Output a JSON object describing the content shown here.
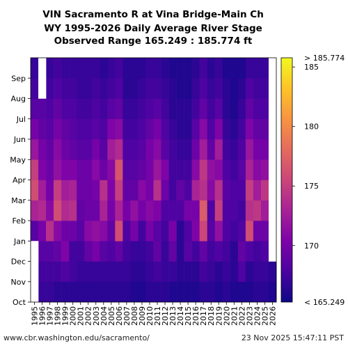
{
  "title_lines": [
    "VIN Sacramento R at Vina Bridge-Main Ch",
    "WY 1995-2026 Daily Average River Stage",
    "Observed Range 165.249 : 185.774 ft"
  ],
  "footer": {
    "source": "www.cbr.washington.edu/sacramento/",
    "timestamp": "23 Nov 2025 15:47:11 PST"
  },
  "chart_data": {
    "type": "heatmap",
    "x_categories": [
      "1995",
      "1996",
      "1997",
      "1998",
      "1999",
      "2000",
      "2001",
      "2002",
      "2003",
      "2004",
      "2005",
      "2006",
      "2007",
      "2008",
      "2009",
      "2010",
      "2011",
      "2012",
      "2013",
      "2014",
      "2015",
      "2016",
      "2017",
      "2018",
      "2019",
      "2020",
      "2021",
      "2022",
      "2023",
      "2024",
      "2025",
      "2026"
    ],
    "y_categories": [
      "Oct",
      "Nov",
      "Dec",
      "Jan",
      "Feb",
      "Mar",
      "Apr",
      "May",
      "Jun",
      "Jul",
      "Aug",
      "Sep"
    ],
    "colorbar": {
      "ticks": [
        170,
        175,
        180,
        185
      ],
      "top_label": "> 185.774",
      "bottom_label": "< 165.249",
      "min": 165.249,
      "max": 185.774,
      "colormap": "plasma"
    },
    "approx_month_means": {
      "1995": [
        null,
        null,
        null,
        168.5,
        173.0,
        176.0,
        175.0,
        172.0,
        170.0,
        168.5,
        167.5,
        167.0
      ],
      "1996": [
        167.0,
        167.5,
        168.5,
        170.0,
        173.5,
        172.5,
        170.5,
        170.0,
        169.0,
        168.5,
        null,
        null
      ],
      "1997": [
        167.0,
        167.5,
        168.5,
        174.0,
        171.0,
        170.0,
        169.5,
        169.0,
        168.5,
        168.0,
        167.5,
        167.0
      ],
      "1998": [
        166.5,
        167.5,
        169.0,
        171.0,
        176.0,
        175.0,
        171.5,
        171.0,
        170.0,
        169.0,
        168.0,
        167.5
      ],
      "1999": [
        166.5,
        168.0,
        170.5,
        169.5,
        173.5,
        172.5,
        170.5,
        169.5,
        169.0,
        168.0,
        167.5,
        167.0
      ],
      "2000": [
        166.5,
        167.5,
        167.5,
        169.5,
        174.0,
        173.0,
        170.5,
        169.0,
        168.5,
        168.0,
        167.5,
        167.0
      ],
      "2001": [
        166.5,
        167.0,
        167.5,
        168.5,
        169.0,
        169.5,
        169.5,
        168.5,
        168.0,
        167.5,
        167.0,
        167.0
      ],
      "2002": [
        166.5,
        167.0,
        169.0,
        171.0,
        169.5,
        169.5,
        169.5,
        168.5,
        168.0,
        167.5,
        167.0,
        167.0
      ],
      "2003": [
        166.5,
        167.0,
        170.0,
        171.5,
        169.5,
        170.0,
        171.0,
        170.0,
        168.5,
        168.0,
        167.5,
        167.0
      ],
      "2004": [
        166.5,
        167.0,
        168.5,
        171.0,
        173.0,
        174.0,
        169.5,
        168.5,
        168.0,
        167.5,
        167.0,
        166.5
      ],
      "2005": [
        166.5,
        167.0,
        168.0,
        169.0,
        170.0,
        170.5,
        171.0,
        172.5,
        170.5,
        168.5,
        167.5,
        167.0
      ],
      "2006": [
        166.5,
        167.0,
        169.0,
        176.0,
        173.0,
        175.0,
        176.5,
        173.5,
        171.0,
        169.0,
        168.0,
        167.5
      ],
      "2007": [
        166.5,
        167.0,
        167.5,
        168.0,
        170.0,
        169.0,
        168.5,
        168.0,
        167.5,
        167.0,
        166.5,
        166.5
      ],
      "2008": [
        166.0,
        166.5,
        167.0,
        170.0,
        171.5,
        169.0,
        168.5,
        168.0,
        167.5,
        167.0,
        166.5,
        166.5
      ],
      "2009": [
        166.0,
        166.5,
        167.0,
        167.5,
        170.0,
        171.0,
        169.0,
        168.5,
        168.0,
        167.5,
        167.0,
        166.5
      ],
      "2010": [
        166.5,
        167.0,
        167.5,
        170.0,
        171.0,
        170.0,
        170.0,
        170.0,
        169.0,
        168.0,
        167.5,
        167.0
      ],
      "2011": [
        166.5,
        167.5,
        169.0,
        168.5,
        170.5,
        174.0,
        172.0,
        171.0,
        170.0,
        168.5,
        167.5,
        167.0
      ],
      "2012": [
        166.5,
        167.0,
        167.0,
        167.5,
        168.0,
        169.5,
        170.5,
        168.5,
        168.0,
        167.5,
        167.0,
        166.5
      ],
      "2013": [
        166.0,
        167.0,
        169.0,
        170.0,
        168.0,
        167.5,
        167.5,
        167.5,
        167.0,
        166.5,
        166.5,
        166.0
      ],
      "2014": [
        166.0,
        166.5,
        166.5,
        166.5,
        168.0,
        169.0,
        167.5,
        167.0,
        166.5,
        166.5,
        166.0,
        166.0
      ],
      "2015": [
        166.0,
        166.5,
        168.5,
        168.0,
        170.0,
        168.0,
        167.5,
        167.0,
        166.5,
        166.5,
        166.0,
        166.0
      ],
      "2016": [
        166.0,
        166.5,
        167.5,
        170.5,
        170.0,
        173.0,
        171.0,
        169.5,
        168.5,
        167.5,
        167.0,
        166.5
      ],
      "2017": [
        166.5,
        167.5,
        169.0,
        175.5,
        177.0,
        174.0,
        174.5,
        172.5,
        171.0,
        169.0,
        168.0,
        167.5
      ],
      "2018": [
        166.5,
        167.0,
        167.5,
        168.5,
        168.0,
        171.0,
        171.5,
        169.0,
        168.0,
        167.5,
        167.0,
        166.5
      ],
      "2019": [
        166.0,
        166.5,
        168.0,
        171.5,
        175.0,
        174.0,
        171.0,
        172.5,
        170.5,
        168.5,
        167.5,
        167.0
      ],
      "2020": [
        166.5,
        167.0,
        167.5,
        168.0,
        168.0,
        168.5,
        168.0,
        167.5,
        167.0,
        166.5,
        166.5,
        166.0
      ],
      "2021": [
        166.0,
        166.5,
        166.5,
        167.5,
        168.0,
        168.0,
        167.5,
        167.0,
        166.5,
        166.0,
        166.0,
        166.0
      ],
      "2022": [
        166.0,
        168.0,
        169.0,
        168.0,
        167.5,
        168.0,
        168.5,
        168.0,
        167.5,
        167.0,
        166.5,
        166.0
      ],
      "2023": [
        166.0,
        166.5,
        168.0,
        176.0,
        174.0,
        175.0,
        173.0,
        172.0,
        170.5,
        169.0,
        168.0,
        167.0
      ],
      "2024": [
        166.5,
        167.0,
        167.5,
        169.5,
        174.5,
        172.5,
        171.0,
        170.0,
        169.0,
        168.0,
        167.5,
        167.0
      ],
      "2025": [
        166.5,
        167.0,
        168.0,
        169.5,
        172.5,
        174.5,
        171.5,
        170.0,
        169.0,
        168.0,
        167.5,
        167.0
      ],
      "2026": [
        166.0,
        166.5,
        null,
        null,
        null,
        null,
        null,
        null,
        null,
        null,
        null,
        null
      ]
    }
  }
}
